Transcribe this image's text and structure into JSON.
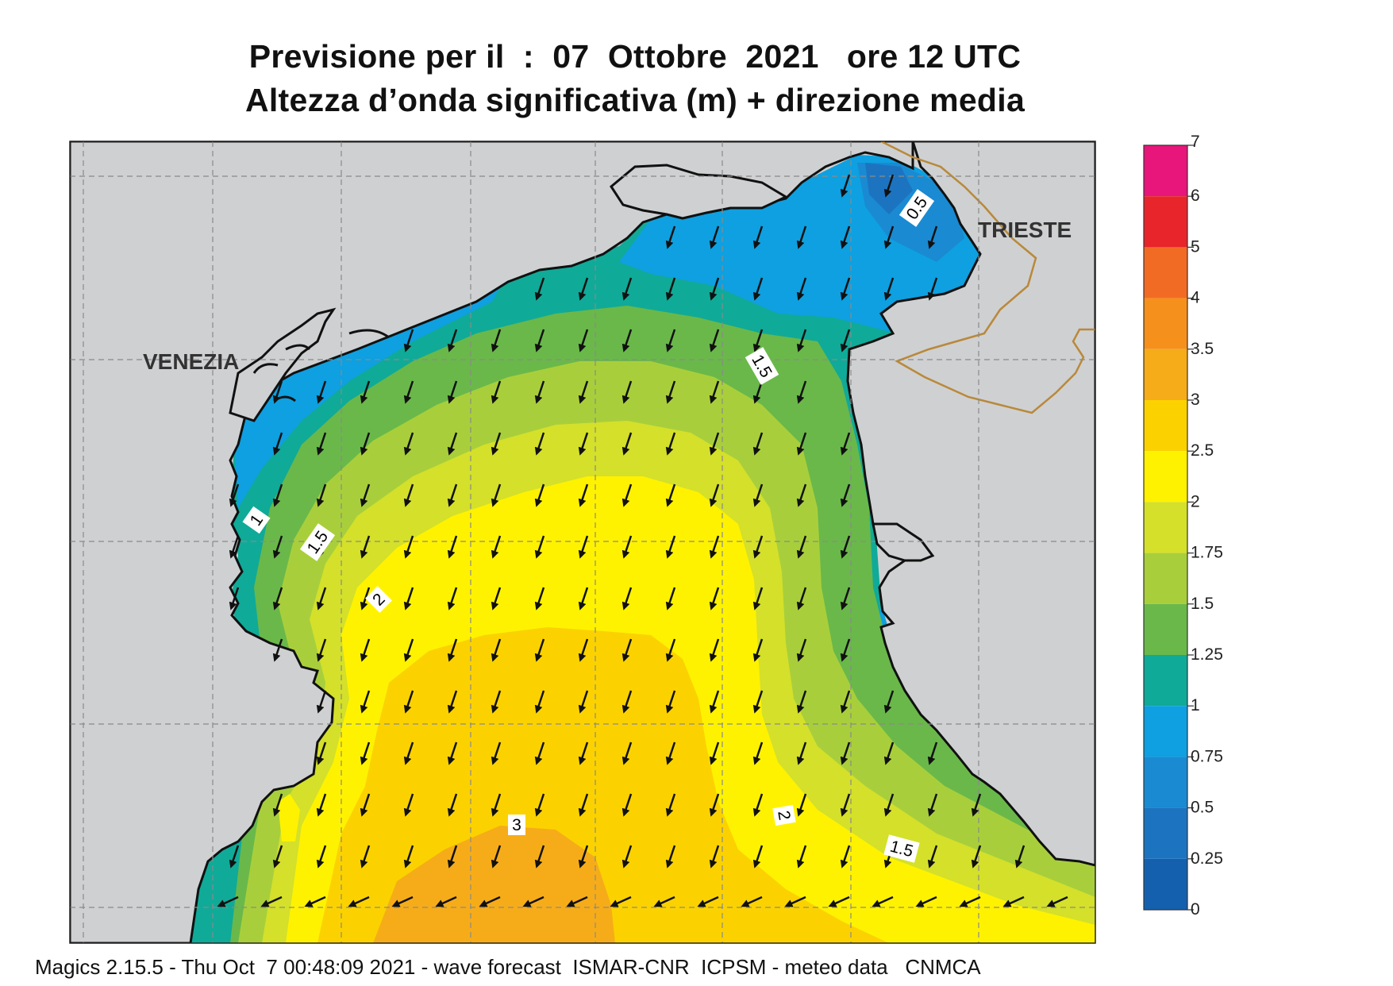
{
  "header": {
    "title_line1": "Previsione per il  :  07  Ottobre  2021   ore 12 UTC",
    "title_line2": "Altezza d’onda significativa (m) + direzione media"
  },
  "map": {
    "cities": [
      "VENEZIA",
      "TRIESTE"
    ],
    "contour_labels": [
      "0.5",
      "1",
      "1.5",
      "1.5",
      "1.5",
      "2",
      "2",
      "3"
    ],
    "arrow_direction": "toward south-west"
  },
  "legend": {
    "ticks": [
      "7",
      "6",
      "5",
      "4",
      "3.5",
      "3",
      "2.5",
      "2",
      "1.75",
      "1.5",
      "1.25",
      "1",
      "0.75",
      "0.5",
      "0.25",
      "0"
    ],
    "colors": [
      "#e8157a",
      "#e8252b",
      "#f26b24",
      "#f5901d",
      "#f6ac19",
      "#fbd200",
      "#fff200",
      "#d4e02a",
      "#a8cf3b",
      "#6ab84a",
      "#10aa98",
      "#0ea0e0",
      "#1a8ad2",
      "#1c74c0",
      "#1560ae"
    ]
  },
  "footer": {
    "text": "Magics 2.15.5 - Thu Oct  7 00:48:09 2021 - wave forecast  ISMAR-CNR  ICPSM - meteo data   CNMCA"
  }
}
